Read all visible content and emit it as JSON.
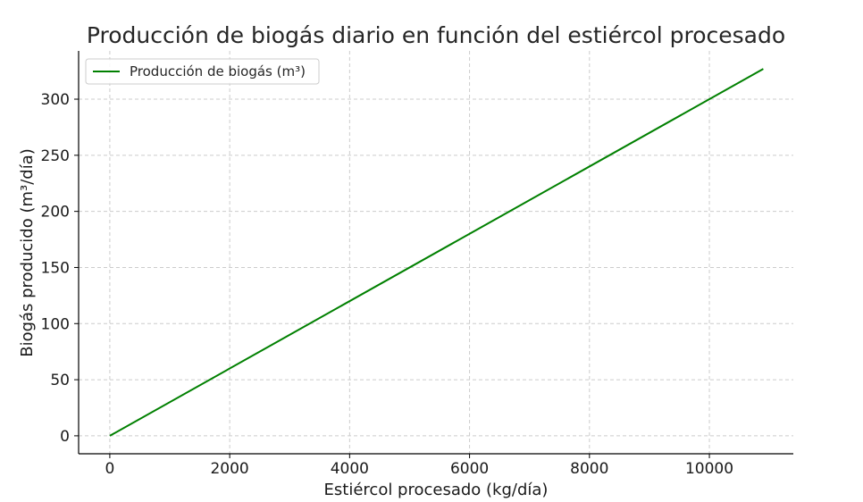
{
  "chart_data": {
    "type": "line",
    "title": "Producción de biogás diario en función del estiércol procesado",
    "xlabel": "Estiércol procesado (kg/día)",
    "ylabel": "Biogás producido (m³/día)",
    "xlim": [
      -520,
      11400
    ],
    "ylim": [
      -16,
      343
    ],
    "xticks": [
      0,
      2000,
      4000,
      6000,
      8000,
      10000
    ],
    "yticks": [
      0,
      50,
      100,
      150,
      200,
      250,
      300
    ],
    "grid": true,
    "legend_position": "top-left",
    "series": [
      {
        "name": "Producción de biogás (m³)",
        "color": "#008000",
        "x": [
          0,
          10900
        ],
        "y": [
          0,
          327
        ]
      }
    ]
  },
  "colors": {
    "grid": "#cccccc",
    "axis": "#000000",
    "line": "#008000"
  }
}
